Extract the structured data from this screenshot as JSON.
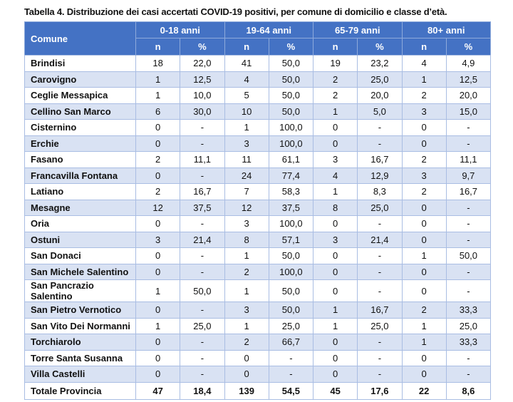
{
  "title": "Tabella 4. Distribuzione dei casi accertati COVID-19 positivi, per comune di domicilio e classe d’età.",
  "colors": {
    "header": "#4472C4",
    "alt_row": "#D9E2F3"
  },
  "header": {
    "comune": "Comune",
    "groups": [
      "0-18 anni",
      "19-64 anni",
      "65-79 anni",
      "80+ anni"
    ],
    "sub": [
      "n",
      "%",
      "n",
      "%",
      "n",
      "%",
      "n",
      "%"
    ]
  },
  "rows": [
    {
      "name": "Brindisi",
      "values": [
        "18",
        "22,0",
        "41",
        "50,0",
        "19",
        "23,2",
        "4",
        "4,9"
      ]
    },
    {
      "name": "Carovigno",
      "values": [
        "1",
        "12,5",
        "4",
        "50,0",
        "2",
        "25,0",
        "1",
        "12,5"
      ]
    },
    {
      "name": "Ceglie Messapica",
      "values": [
        "1",
        "10,0",
        "5",
        "50,0",
        "2",
        "20,0",
        "2",
        "20,0"
      ]
    },
    {
      "name": "Cellino San Marco",
      "values": [
        "6",
        "30,0",
        "10",
        "50,0",
        "1",
        "5,0",
        "3",
        "15,0"
      ]
    },
    {
      "name": "Cisternino",
      "values": [
        "0",
        "-",
        "1",
        "100,0",
        "0",
        "-",
        "0",
        "-"
      ]
    },
    {
      "name": "Erchie",
      "values": [
        "0",
        "-",
        "3",
        "100,0",
        "0",
        "-",
        "0",
        "-"
      ]
    },
    {
      "name": "Fasano",
      "values": [
        "2",
        "11,1",
        "11",
        "61,1",
        "3",
        "16,7",
        "2",
        "11,1"
      ]
    },
    {
      "name": "Francavilla Fontana",
      "values": [
        "0",
        "-",
        "24",
        "77,4",
        "4",
        "12,9",
        "3",
        "9,7"
      ]
    },
    {
      "name": "Latiano",
      "values": [
        "2",
        "16,7",
        "7",
        "58,3",
        "1",
        "8,3",
        "2",
        "16,7"
      ]
    },
    {
      "name": "Mesagne",
      "values": [
        "12",
        "37,5",
        "12",
        "37,5",
        "8",
        "25,0",
        "0",
        "-"
      ]
    },
    {
      "name": "Oria",
      "values": [
        "0",
        "-",
        "3",
        "100,0",
        "0",
        "-",
        "0",
        "-"
      ]
    },
    {
      "name": "Ostuni",
      "values": [
        "3",
        "21,4",
        "8",
        "57,1",
        "3",
        "21,4",
        "0",
        "-"
      ]
    },
    {
      "name": "San Donaci",
      "values": [
        "0",
        "-",
        "1",
        "50,0",
        "0",
        "-",
        "1",
        "50,0"
      ]
    },
    {
      "name": "San Michele Salentino",
      "values": [
        "0",
        "-",
        "2",
        "100,0",
        "0",
        "-",
        "0",
        "-"
      ]
    },
    {
      "name": "San Pancrazio Salentino",
      "values": [
        "1",
        "50,0",
        "1",
        "50,0",
        "0",
        "-",
        "0",
        "-"
      ]
    },
    {
      "name": "San Pietro Vernotico",
      "values": [
        "0",
        "-",
        "3",
        "50,0",
        "1",
        "16,7",
        "2",
        "33,3"
      ]
    },
    {
      "name": "San Vito Dei Normanni",
      "values": [
        "1",
        "25,0",
        "1",
        "25,0",
        "1",
        "25,0",
        "1",
        "25,0"
      ]
    },
    {
      "name": "Torchiarolo",
      "values": [
        "0",
        "-",
        "2",
        "66,7",
        "0",
        "-",
        "1",
        "33,3"
      ]
    },
    {
      "name": "Torre Santa Susanna",
      "values": [
        "0",
        "-",
        "0",
        "-",
        "0",
        "-",
        "0",
        "-"
      ]
    },
    {
      "name": "Villa Castelli",
      "values": [
        "0",
        "-",
        "0",
        "-",
        "0",
        "-",
        "0",
        "-"
      ]
    }
  ],
  "total": {
    "name": "Totale Provincia",
    "values": [
      "47",
      "18,4",
      "139",
      "54,5",
      "45",
      "17,6",
      "22",
      "8,6"
    ]
  }
}
